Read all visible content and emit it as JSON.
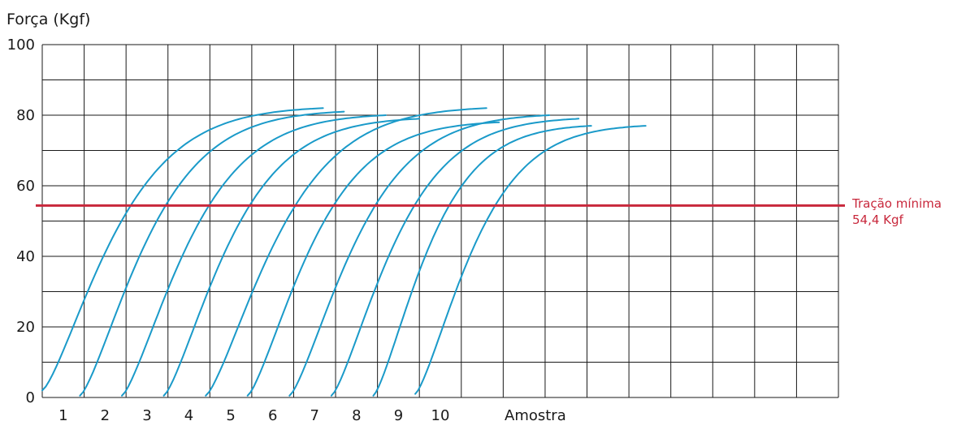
{
  "chart_data": {
    "type": "line",
    "ylabel": "Força (Kgf)",
    "xlabel": "Amostra",
    "ylim": [
      0,
      100
    ],
    "yticks": [
      "0",
      "20",
      "40",
      "60",
      "80",
      "100"
    ],
    "xticks": [
      "1",
      "2",
      "3",
      "4",
      "5",
      "6",
      "7",
      "8",
      "9",
      "10"
    ],
    "grid": true,
    "colors": {
      "series": "#1a9ac9",
      "reference": "#c8283c",
      "grid": "#1a1a1a"
    },
    "reference_line": {
      "value": 54.4,
      "label_line1": "Tração mínima",
      "label_line2": "54,4 Kgf"
    },
    "series": [
      {
        "start": 1,
        "start_force": 2,
        "end": 7.7,
        "end_force": 82
      },
      {
        "start": 1.9,
        "start_force": 0.5,
        "end": 8.2,
        "end_force": 81
      },
      {
        "start": 2.9,
        "start_force": 0.5,
        "end": 9.2,
        "end_force": 80
      },
      {
        "start": 3.9,
        "start_force": 0.5,
        "end": 10.0,
        "end_force": 79
      },
      {
        "start": 4.9,
        "start_force": 0.5,
        "end": 11.6,
        "end_force": 82
      },
      {
        "start": 5.9,
        "start_force": 0.5,
        "end": 11.9,
        "end_force": 78
      },
      {
        "start": 6.9,
        "start_force": 0.5,
        "end": 13.1,
        "end_force": 80
      },
      {
        "start": 7.9,
        "start_force": 0.5,
        "end": 13.8,
        "end_force": 79
      },
      {
        "start": 8.9,
        "start_force": 0.5,
        "end": 14.1,
        "end_force": 77
      },
      {
        "start": 9.9,
        "start_force": 1,
        "end": 15.4,
        "end_force": 77
      }
    ]
  }
}
